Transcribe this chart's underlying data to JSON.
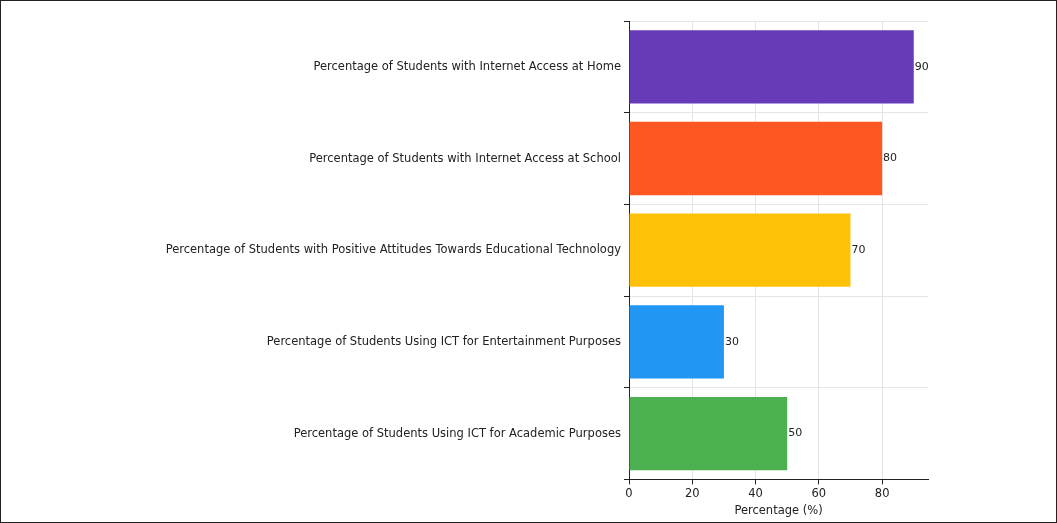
{
  "chart_data": {
    "type": "bar",
    "orientation": "horizontal",
    "xlabel": "Percentage (%)",
    "categories": [
      "Percentage of Students with Internet Access at Home",
      "Percentage of Students with Internet Access at School",
      "Percentage of Students with Positive Attitudes Towards Educational Technology",
      "Percentage of Students Using ICT for Entertainment Purposes",
      "Percentage of Students Using ICT for Academic Purposes"
    ],
    "values": [
      90,
      80,
      70,
      30,
      50
    ],
    "colors": [
      "#673ab7",
      "#ff5722",
      "#ffc107",
      "#2196f3",
      "#4caf50"
    ],
    "xlim": [
      0,
      94.5
    ],
    "xticks": [
      0,
      20,
      40,
      60,
      80
    ],
    "grid": true,
    "data_labels": true,
    "legend": false
  }
}
